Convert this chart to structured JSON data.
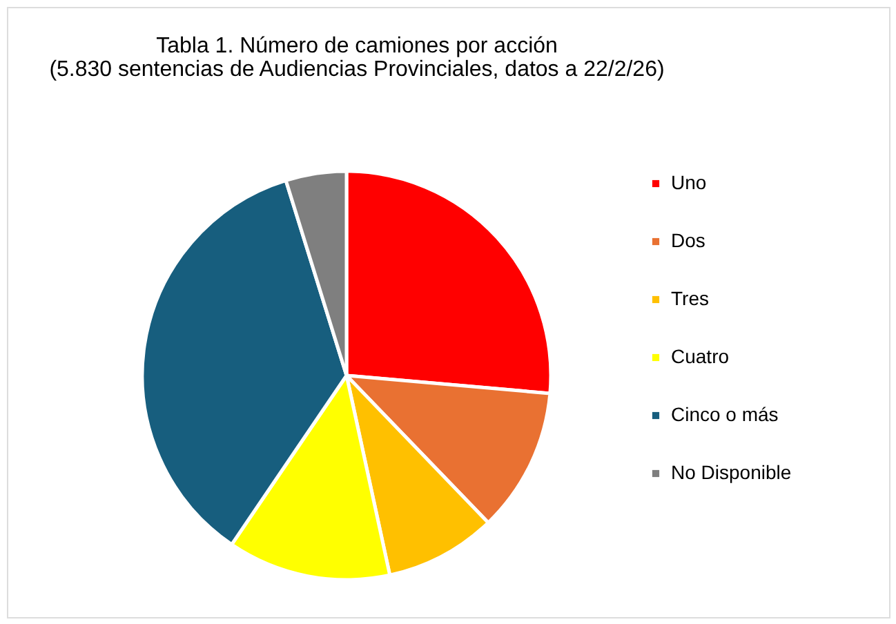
{
  "chart_data": {
    "type": "pie",
    "title": "Tabla 1. Número de camiones por acción",
    "subtitle": "(5.830 sentencias de Audiencias Provinciales, datos a 22/2/26)",
    "categories": [
      "Uno",
      "Dos",
      "Tres",
      "Cuatro",
      "Cinco o más",
      "No Disponible"
    ],
    "values": [
      26.4,
      11.4,
      8.8,
      12.9,
      35.7,
      4.8
    ],
    "colors": [
      "#ff0000",
      "#e97132",
      "#ffc000",
      "#ffff00",
      "#175e7e",
      "#7f7f7f"
    ],
    "legend": "right"
  }
}
